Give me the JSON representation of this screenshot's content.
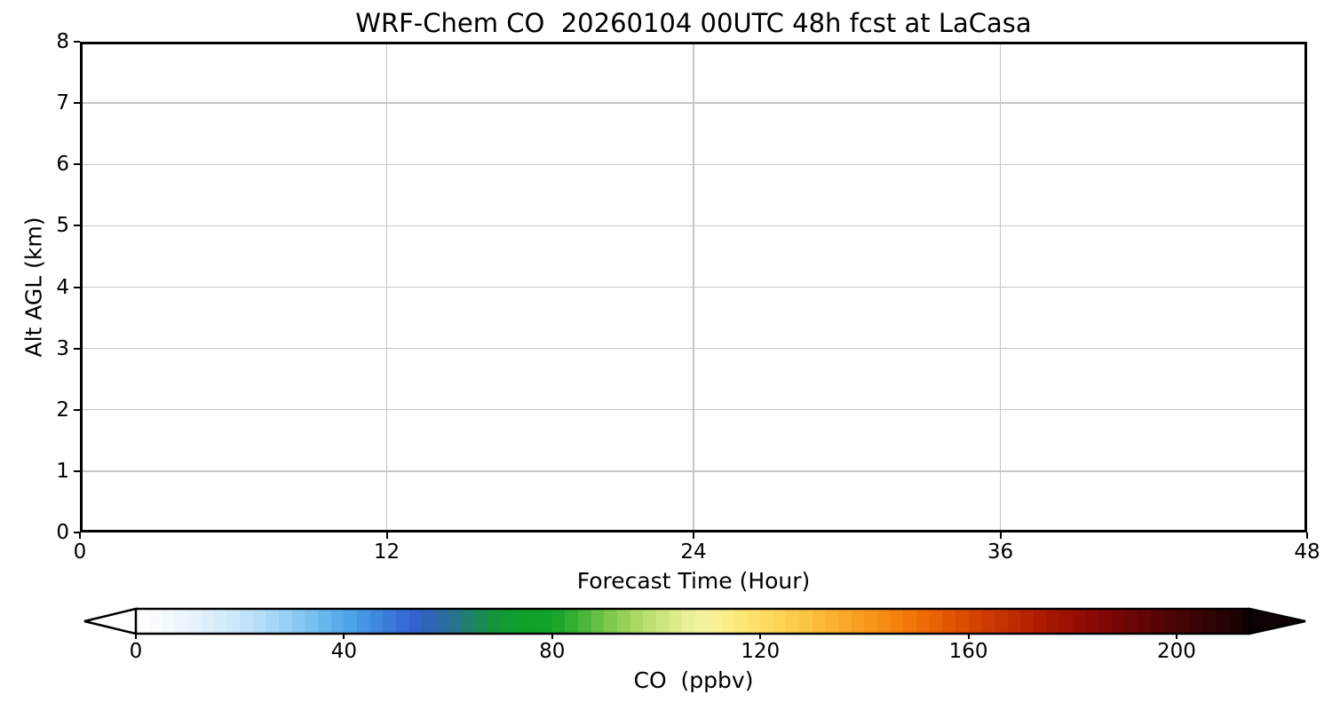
{
  "chart_data": {
    "type": "heatmap",
    "title": "WRF-Chem CO  20260104 00UTC 48h fcst at LaCasa",
    "xlabel": "Forecast Time (Hour)",
    "ylabel": "Alt AGL (km)",
    "xlim": [
      0,
      48
    ],
    "ylim": [
      0,
      8
    ],
    "x_ticks": [
      0,
      12,
      24,
      36,
      48
    ],
    "y_ticks": [
      0,
      1,
      2,
      3,
      4,
      5,
      6,
      7,
      8
    ],
    "grid": true,
    "grid_color": "#c6c6c6",
    "axis_color": "#000000",
    "background_color": "#ffffff",
    "values": [],
    "colorbar": {
      "label": "CO  (ppbv)",
      "ticks": [
        0,
        40,
        80,
        120,
        160,
        200
      ],
      "vmin": 0,
      "vmax": 214,
      "segment_step": 2.5,
      "extend": "both",
      "extend_left_color": "#ffffff",
      "extend_right_color": "#0d0101",
      "colormap_stops": [
        [
          0,
          "#ffffff"
        ],
        [
          6,
          "#f4fafe"
        ],
        [
          12,
          "#e4f2fc"
        ],
        [
          18,
          "#cfe9fa"
        ],
        [
          24,
          "#b4ddf8"
        ],
        [
          30,
          "#90ccf3"
        ],
        [
          36,
          "#68b8ee"
        ],
        [
          42,
          "#4a9fe6"
        ],
        [
          48,
          "#3b7edb"
        ],
        [
          53,
          "#3363d2"
        ],
        [
          57,
          "#2e64b4"
        ],
        [
          61,
          "#277490"
        ],
        [
          65,
          "#1d8560"
        ],
        [
          69,
          "#149638"
        ],
        [
          74,
          "#0fa02b"
        ],
        [
          80,
          "#12a228"
        ],
        [
          85,
          "#3db237"
        ],
        [
          90,
          "#72c549"
        ],
        [
          95,
          "#a0d55e"
        ],
        [
          100,
          "#c6e577"
        ],
        [
          104,
          "#ddec8c"
        ],
        [
          108,
          "#f0f3a2"
        ],
        [
          112,
          "#fbf091"
        ],
        [
          116,
          "#fde878"
        ],
        [
          121,
          "#fedc60"
        ],
        [
          127,
          "#fdca4a"
        ],
        [
          133,
          "#fbb434"
        ],
        [
          139,
          "#f89e20"
        ],
        [
          145,
          "#f5860f"
        ],
        [
          151,
          "#ee6c05"
        ],
        [
          157,
          "#e05301"
        ],
        [
          163,
          "#cf3d00"
        ],
        [
          169,
          "#bd2a00"
        ],
        [
          175,
          "#a91801"
        ],
        [
          181,
          "#940d03"
        ],
        [
          187,
          "#7d0706"
        ],
        [
          193,
          "#640506"
        ],
        [
          199,
          "#4c0404"
        ],
        [
          205,
          "#340303"
        ],
        [
          211,
          "#1e0202"
        ],
        [
          214,
          "#120101"
        ]
      ]
    }
  }
}
